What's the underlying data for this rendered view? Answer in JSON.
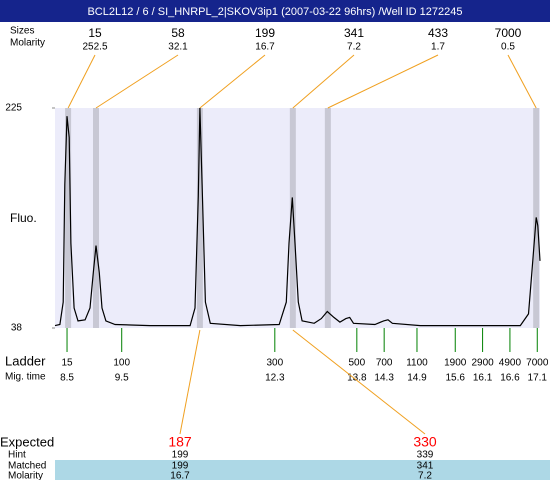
{
  "chart_data": {
    "type": "electropherogram",
    "title": "BCL2L12 / 6 / SI_HNRPL_2|SKOV3ip1 (2007-03-22 96hrs) /Well ID 1272245",
    "sizes_label": "Sizes",
    "peak_molarity_label": "Molarity",
    "fluo_label": "Fluo.",
    "ylim": [
      38,
      225
    ],
    "yticks": [
      38,
      225
    ],
    "xlim": [
      8.28,
      17.15
    ],
    "peaks": {
      "sizes": [
        15,
        58,
        199,
        341,
        433,
        7000
      ],
      "molarity": [
        252.5,
        32.1,
        16.7,
        7.2,
        1.7,
        0.5
      ],
      "times": [
        8.52,
        9.03,
        10.93,
        12.63,
        13.27,
        17.08
      ]
    },
    "trace": {
      "color": "#000000",
      "x": [
        8.28,
        8.37,
        8.43,
        8.46,
        8.5,
        8.54,
        8.57,
        8.63,
        8.7,
        8.83,
        8.92,
        8.98,
        9.03,
        9.09,
        9.14,
        9.21,
        9.38,
        10.02,
        10.75,
        10.84,
        10.9,
        10.93,
        10.97,
        11.03,
        11.12,
        11.67,
        12.38,
        12.51,
        12.56,
        12.62,
        12.67,
        12.73,
        12.8,
        13.02,
        13.15,
        13.26,
        13.38,
        13.49,
        13.6,
        13.67,
        13.74,
        14.13,
        14.29,
        14.37,
        14.45,
        14.96,
        16.06,
        16.79,
        16.94,
        17.01,
        17.08,
        17.11,
        17.15
      ],
      "values": [
        40,
        41,
        60,
        160,
        218,
        200,
        110,
        55,
        44,
        45,
        55,
        85,
        108,
        85,
        55,
        44,
        41,
        40,
        40,
        55,
        150,
        225,
        160,
        60,
        42,
        40,
        41,
        60,
        110,
        149,
        110,
        60,
        44,
        42,
        46,
        52,
        47,
        43,
        46,
        47,
        42,
        41,
        44,
        45,
        42,
        40,
        40,
        40,
        50,
        90,
        132,
        125,
        95
      ]
    },
    "ladder_label": "Ladder",
    "mig_time_label": "Mig. time",
    "ladder": {
      "color": "#008000",
      "sizes": [
        15,
        100,
        300,
        500,
        700,
        1100,
        1900,
        2900,
        4900,
        7000
      ],
      "mig_times": [
        8.5,
        9.5,
        12.3,
        13.8,
        14.3,
        14.9,
        15.6,
        16.1,
        16.6,
        17.1
      ]
    },
    "expected_label": "Expected",
    "hint_label": "Hint",
    "matched_label": "Matched",
    "molarity_label": "Molarity",
    "expected": [
      187,
      330
    ],
    "hint": [
      199,
      339
    ],
    "matched": [
      199,
      341
    ],
    "molarity": [
      16.7,
      7.2
    ],
    "expected_color": "#ff0000"
  }
}
